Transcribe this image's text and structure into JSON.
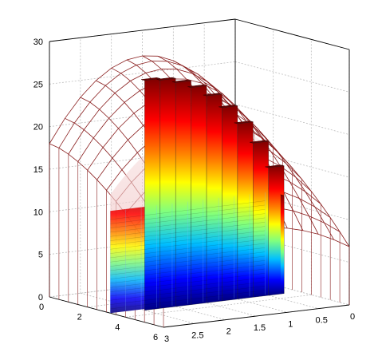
{
  "chart_data": {
    "type": "surface3d",
    "title": "",
    "xlabel": "",
    "ylabel": "",
    "zlabel": "",
    "axes": {
      "x": {
        "ticks": [
          "0",
          "2",
          "4",
          "6"
        ],
        "range": [
          0,
          6
        ]
      },
      "y": {
        "ticks": [
          "3",
          "2.5",
          "2",
          "1.5",
          "1",
          "0.5",
          "0"
        ],
        "range": [
          0,
          3
        ]
      },
      "z": {
        "ticks": [
          "0",
          "5",
          "10",
          "15",
          "20",
          "25",
          "30"
        ],
        "range": [
          0,
          30
        ]
      }
    },
    "grid": true,
    "box": true,
    "colormap": "jet",
    "surface": {
      "description_free": true,
      "z_peak": 27,
      "z_at_y0_x0": 18,
      "z_at_y3_x0": 18,
      "z_at_x6": 6
    },
    "staircase_cut": {
      "x": 3.2,
      "y_steps": [
        2.5,
        2.25,
        2.0,
        1.75,
        1.5,
        1.25,
        1.0,
        0.75,
        0.5,
        0.25
      ],
      "z_steps": [
        27,
        26.8,
        26.3,
        25.5,
        24.3,
        22.7,
        20.6,
        18.1,
        15.0,
        11.5
      ]
    },
    "colors": {
      "mesh": "#8a1f1f",
      "cut_top": "#6e0000",
      "axis": "#000000",
      "grid": "#bdbdbd"
    }
  }
}
